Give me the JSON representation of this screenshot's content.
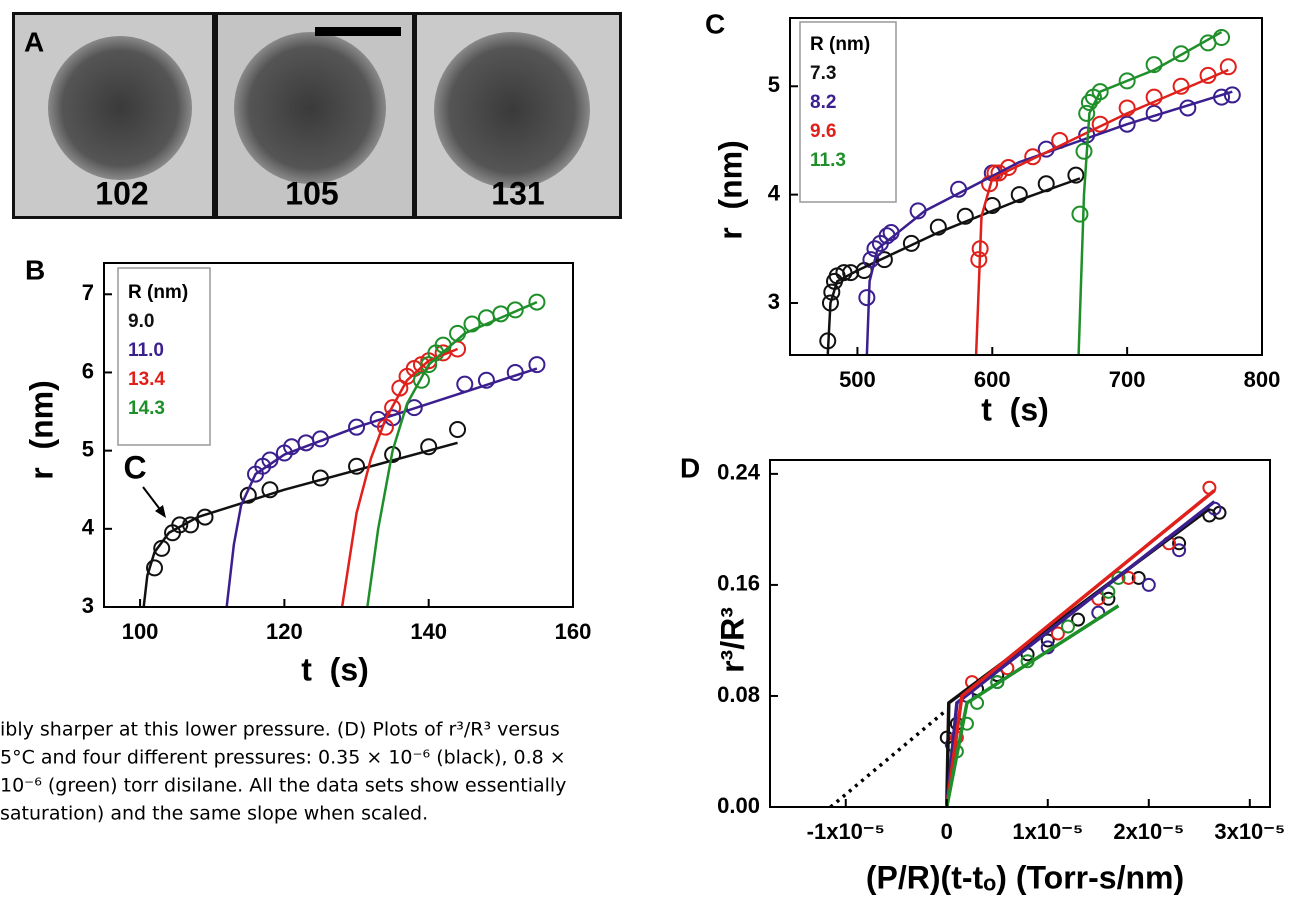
{
  "figure_a": {
    "label": "A",
    "frames": [
      "102",
      "105",
      "131"
    ]
  },
  "caption": [
    "ibly sharper at this lower pressure. (D) Plots of r³/R³ versus",
    "5°C and four different pressures: 0.35 × 10⁻⁶ (black), 0.8 ×",
    "10⁻⁶ (green) torr disilane. All the data sets show essentially",
    "saturation) and the same slope when scaled."
  ],
  "chart_data": [
    {
      "type": "scatter",
      "label": "B",
      "xlabel": "t  (s)",
      "ylabel": "r  (nm)",
      "legend_title": "R (nm)",
      "annotation": "C",
      "xlim": [
        95,
        160
      ],
      "xticks": [
        100,
        120,
        140,
        160
      ],
      "ylim": [
        3,
        7.4
      ],
      "yticks": [
        3,
        4,
        5,
        6,
        7
      ],
      "series": [
        {
          "name": "9.0",
          "color": "#111111",
          "x": [
            102,
            103,
            104.5,
            105.5,
            107,
            109,
            115,
            118,
            125,
            130,
            135,
            140,
            144
          ],
          "y": [
            3.5,
            3.75,
            3.95,
            4.05,
            4.05,
            4.15,
            4.43,
            4.5,
            4.65,
            4.8,
            4.95,
            5.05,
            5.27
          ],
          "fit": {
            "x": [
              100.5,
              101,
              102,
              104,
              108,
              120,
              144
            ],
            "y": [
              3,
              3.4,
              3.7,
              3.95,
              4.15,
              4.5,
              5.1
            ]
          }
        },
        {
          "name": "11.0",
          "color": "#3b1f8f",
          "x": [
            116,
            117,
            118,
            120,
            121,
            123,
            125,
            130,
            133,
            135,
            138,
            145,
            148,
            152,
            155
          ],
          "y": [
            4.7,
            4.8,
            4.88,
            4.97,
            5.05,
            5.1,
            5.15,
            5.3,
            5.4,
            5.42,
            5.55,
            5.85,
            5.9,
            6.0,
            6.1
          ],
          "fit": {
            "x": [
              112,
              113,
              114,
              116,
              120,
              130,
              140,
              155
            ],
            "y": [
              3,
              3.8,
              4.3,
              4.7,
              4.95,
              5.3,
              5.6,
              6.05
            ]
          }
        },
        {
          "name": "13.4",
          "color": "#e0201b",
          "x": [
            134,
            135,
            136,
            137,
            138,
            139,
            140,
            142,
            144
          ],
          "y": [
            5.3,
            5.55,
            5.8,
            5.95,
            6.05,
            6.1,
            6.15,
            6.25,
            6.3
          ],
          "fit": {
            "x": [
              128,
              130,
              132,
              134,
              137,
              140,
              144
            ],
            "y": [
              3,
              4.2,
              4.9,
              5.4,
              5.9,
              6.15,
              6.3
            ]
          }
        },
        {
          "name": "14.3",
          "color": "#1f8f2a",
          "x": [
            139,
            140,
            141,
            142,
            144,
            146,
            148,
            150,
            152,
            155
          ],
          "y": [
            5.9,
            6.1,
            6.25,
            6.35,
            6.5,
            6.62,
            6.7,
            6.75,
            6.8,
            6.9
          ],
          "fit": {
            "x": [
              131.5,
              133,
              135,
              137,
              140,
              145,
              155
            ],
            "y": [
              3,
              4,
              5,
              5.6,
              6.1,
              6.5,
              6.9
            ]
          }
        }
      ]
    },
    {
      "type": "scatter",
      "label": "C",
      "xlabel": "t  (s)",
      "ylabel": "r  (nm)",
      "legend_title": "R (nm)",
      "xlim": [
        450,
        800
      ],
      "xticks": [
        500,
        600,
        700,
        800
      ],
      "ylim": [
        2.52,
        5.63
      ],
      "yticks": [
        3,
        4,
        5
      ],
      "series": [
        {
          "name": "7.3",
          "color": "#111111",
          "x": [
            478,
            480,
            481,
            483,
            485,
            490,
            495,
            505,
            520,
            540,
            560,
            580,
            600,
            620,
            640,
            662
          ],
          "y": [
            2.65,
            3.0,
            3.1,
            3.2,
            3.25,
            3.28,
            3.28,
            3.3,
            3.4,
            3.55,
            3.7,
            3.8,
            3.9,
            4.0,
            4.1,
            4.18
          ],
          "fit": {
            "x": [
              478,
              480,
              485,
              500,
              560,
              620,
              665
            ],
            "y": [
              2.52,
              3.0,
              3.2,
              3.3,
              3.65,
              3.95,
              4.15
            ]
          }
        },
        {
          "name": "8.2",
          "color": "#3b1f8f",
          "x": [
            507,
            510,
            513,
            517,
            522,
            525,
            545,
            575,
            600,
            640,
            670,
            700,
            720,
            745,
            770,
            778
          ],
          "y": [
            3.05,
            3.4,
            3.5,
            3.55,
            3.62,
            3.65,
            3.85,
            4.05,
            4.2,
            4.42,
            4.55,
            4.65,
            4.75,
            4.8,
            4.9,
            4.92
          ],
          "fit": {
            "x": [
              507,
              509,
              515,
              550,
              620,
              700,
              778
            ],
            "y": [
              2.52,
              3.2,
              3.5,
              3.85,
              4.3,
              4.65,
              4.95
            ]
          }
        },
        {
          "name": "9.6",
          "color": "#e0201b",
          "x": [
            590,
            591,
            598,
            602,
            605,
            612,
            630,
            650,
            680,
            700,
            720,
            740,
            760,
            775
          ],
          "y": [
            3.4,
            3.5,
            4.1,
            4.2,
            4.2,
            4.25,
            4.35,
            4.5,
            4.65,
            4.8,
            4.9,
            5.0,
            5.1,
            5.18
          ],
          "fit": {
            "x": [
              588,
              592,
              600,
              650,
              700,
              775
            ],
            "y": [
              2.52,
              3.8,
              4.15,
              4.45,
              4.75,
              5.15
            ]
          }
        },
        {
          "name": "11.3",
          "color": "#1f8f2a",
          "x": [
            665,
            668,
            670,
            672,
            675,
            680,
            700,
            720,
            740,
            760,
            770
          ],
          "y": [
            3.82,
            4.4,
            4.75,
            4.85,
            4.9,
            4.95,
            5.05,
            5.2,
            5.3,
            5.4,
            5.45
          ],
          "fit": {
            "x": [
              664,
              668,
              672,
              680,
              720,
              770
            ],
            "y": [
              2.52,
              4.0,
              4.75,
              4.95,
              5.15,
              5.5
            ]
          }
        }
      ]
    },
    {
      "type": "scatter",
      "label": "D",
      "xlabel": "(P/R)(t-tₒ) (Torr-s/nm)",
      "ylabel": "r³/R³",
      "xlim": [
        -1.75e-05,
        3.2e-05
      ],
      "xticks": [
        {
          "value": -1e-05,
          "label": "-1x10⁻⁵"
        },
        0,
        {
          "value": 1e-05,
          "label": "1x10⁻⁵"
        },
        {
          "value": 2e-05,
          "label": "2x10⁻⁵"
        },
        {
          "value": 3e-05,
          "label": "3x10⁻⁵"
        }
      ],
      "ylim": [
        0,
        0.25
      ],
      "yticks": [
        {
          "value": 0,
          "label": "0.00"
        },
        {
          "value": 0.08,
          "label": "0.08"
        },
        {
          "value": 0.16,
          "label": "0.16"
        },
        {
          "value": 0.24,
          "label": "0.24"
        }
      ],
      "extrapolation": {
        "x": [
          -1.15e-05,
          0
        ],
        "y": [
          0,
          0.07
        ]
      },
      "series": [
        {
          "color": "#111111",
          "x": [
            0,
            1e-06,
            3e-06,
            5e-06,
            8e-06,
            1e-05,
            1.3e-05,
            1.6e-05,
            1.9e-05,
            2.3e-05,
            2.6e-05,
            2.7e-05
          ],
          "y": [
            0.05,
            0.06,
            0.085,
            0.095,
            0.11,
            0.12,
            0.135,
            0.15,
            0.165,
            0.19,
            0.21,
            0.212
          ],
          "fit": {
            "x": [
              0,
              2e-07,
              2.6e-05
            ],
            "y": [
              0,
              0.075,
              0.215
            ]
          }
        },
        {
          "color": "#3b1f8f",
          "x": [
            5e-07,
            2e-06,
            5e-06,
            1e-05,
            1.5e-05,
            2e-05,
            2.3e-05,
            2.65e-05
          ],
          "y": [
            0.045,
            0.08,
            0.09,
            0.115,
            0.14,
            0.16,
            0.185,
            0.215
          ],
          "fit": {
            "x": [
              0,
              1e-06,
              2.65e-05
            ],
            "y": [
              0,
              0.075,
              0.22
            ]
          }
        },
        {
          "color": "#e0201b",
          "x": [
            1e-06,
            2.5e-06,
            6e-06,
            1.1e-05,
            1.5e-05,
            1.8e-05,
            2.2e-05,
            2.6e-05
          ],
          "y": [
            0.05,
            0.09,
            0.1,
            0.125,
            0.15,
            0.165,
            0.19,
            0.23
          ],
          "fit": {
            "x": [
              0,
              1.5e-06,
              2.65e-05
            ],
            "y": [
              0,
              0.08,
              0.228
            ]
          }
        },
        {
          "color": "#1f8f2a",
          "x": [
            1e-06,
            2e-06,
            3e-06,
            5e-06,
            8e-06,
            1.2e-05,
            1.6e-05,
            1.7e-05
          ],
          "y": [
            0.04,
            0.06,
            0.075,
            0.09,
            0.105,
            0.13,
            0.155,
            0.165
          ],
          "fit": {
            "x": [
              0,
              2e-06,
              1.7e-05
            ],
            "y": [
              0,
              0.075,
              0.145
            ]
          }
        }
      ]
    }
  ]
}
